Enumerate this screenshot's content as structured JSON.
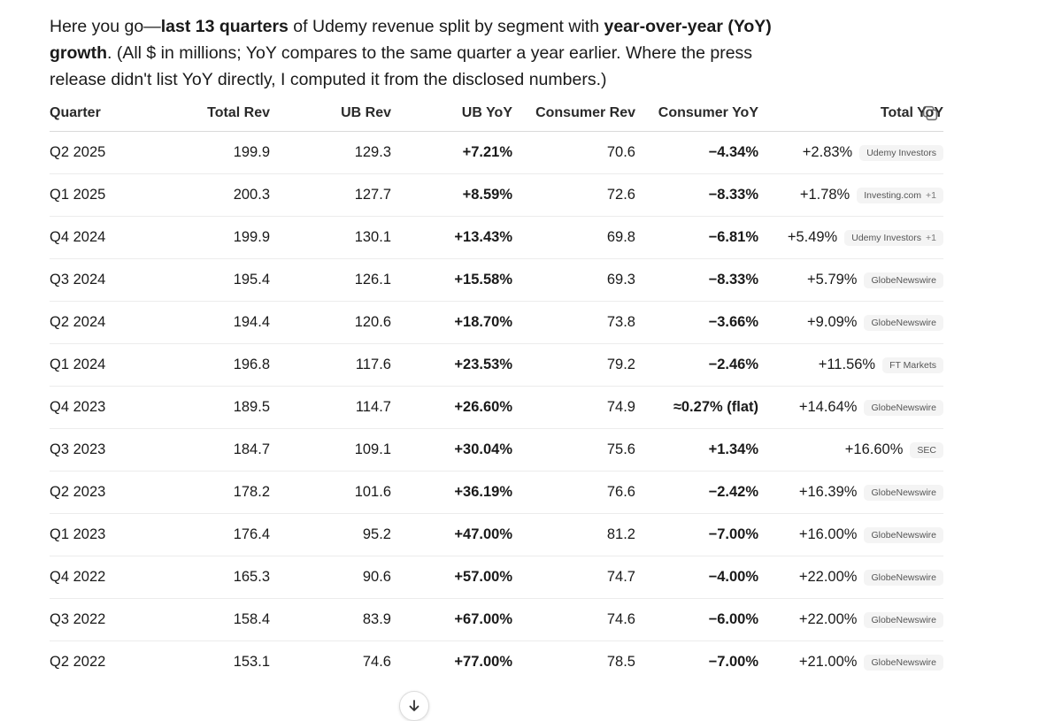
{
  "intro": {
    "p1": "Here you go—",
    "b1": "last 13 quarters",
    "p2": " of Udemy revenue split by segment with ",
    "b2": "year-over-year (YoY) growth",
    "p3": ". (All $ in millions; YoY compares to the same quarter a year earlier. Where the press release didn't list YoY directly, I computed it from the disclosed numbers.)"
  },
  "table": {
    "headers": {
      "quarter": "Quarter",
      "total_rev": "Total Rev",
      "ub_rev": "UB Rev",
      "ub_yoy": "UB YoY",
      "consumer_rev": "Consumer Rev",
      "consumer_yoy": "Consumer YoY",
      "total_yoy": "Total YoY"
    },
    "rows": [
      {
        "quarter": "Q2 2025",
        "total_rev": "199.9",
        "ub_rev": "129.3",
        "ub_yoy": "+7.21%",
        "consumer_rev": "70.6",
        "consumer_yoy": "−4.34%",
        "total_yoy": "+2.83%",
        "source": "Udemy Investors",
        "extra": ""
      },
      {
        "quarter": "Q1 2025",
        "total_rev": "200.3",
        "ub_rev": "127.7",
        "ub_yoy": "+8.59%",
        "consumer_rev": "72.6",
        "consumer_yoy": "−8.33%",
        "total_yoy": "+1.78%",
        "source": "Investing.com",
        "extra": "+1"
      },
      {
        "quarter": "Q4 2024",
        "total_rev": "199.9",
        "ub_rev": "130.1",
        "ub_yoy": "+13.43%",
        "consumer_rev": "69.8",
        "consumer_yoy": "−6.81%",
        "total_yoy": "+5.49%",
        "source": "Udemy Investors",
        "extra": "+1"
      },
      {
        "quarter": "Q3 2024",
        "total_rev": "195.4",
        "ub_rev": "126.1",
        "ub_yoy": "+15.58%",
        "consumer_rev": "69.3",
        "consumer_yoy": "−8.33%",
        "total_yoy": "+5.79%",
        "source": "GlobeNewswire",
        "extra": ""
      },
      {
        "quarter": "Q2 2024",
        "total_rev": "194.4",
        "ub_rev": "120.6",
        "ub_yoy": "+18.70%",
        "consumer_rev": "73.8",
        "consumer_yoy": "−3.66%",
        "total_yoy": "+9.09%",
        "source": "GlobeNewswire",
        "extra": ""
      },
      {
        "quarter": "Q1 2024",
        "total_rev": "196.8",
        "ub_rev": "117.6",
        "ub_yoy": "+23.53%",
        "consumer_rev": "79.2",
        "consumer_yoy": "−2.46%",
        "total_yoy": "+11.56%",
        "source": "FT Markets",
        "extra": ""
      },
      {
        "quarter": "Q4 2023",
        "total_rev": "189.5",
        "ub_rev": "114.7",
        "ub_yoy": "+26.60%",
        "consumer_rev": "74.9",
        "consumer_yoy": "≈0.27% (flat)",
        "total_yoy": "+14.64%",
        "source": "GlobeNewswire",
        "extra": ""
      },
      {
        "quarter": "Q3 2023",
        "total_rev": "184.7",
        "ub_rev": "109.1",
        "ub_yoy": "+30.04%",
        "consumer_rev": "75.6",
        "consumer_yoy": "+1.34%",
        "total_yoy": "+16.60%",
        "source": "SEC",
        "extra": ""
      },
      {
        "quarter": "Q2 2023",
        "total_rev": "178.2",
        "ub_rev": "101.6",
        "ub_yoy": "+36.19%",
        "consumer_rev": "76.6",
        "consumer_yoy": "−2.42%",
        "total_yoy": "+16.39%",
        "source": "GlobeNewswire",
        "extra": ""
      },
      {
        "quarter": "Q1 2023",
        "total_rev": "176.4",
        "ub_rev": "95.2",
        "ub_yoy": "+47.00%",
        "consumer_rev": "81.2",
        "consumer_yoy": "−7.00%",
        "total_yoy": "+16.00%",
        "source": "GlobeNewswire",
        "extra": ""
      },
      {
        "quarter": "Q4 2022",
        "total_rev": "165.3",
        "ub_rev": "90.6",
        "ub_yoy": "+57.00%",
        "consumer_rev": "74.7",
        "consumer_yoy": "−4.00%",
        "total_yoy": "+22.00%",
        "source": "GlobeNewswire",
        "extra": ""
      },
      {
        "quarter": "Q3 2022",
        "total_rev": "158.4",
        "ub_rev": "83.9",
        "ub_yoy": "+67.00%",
        "consumer_rev": "74.6",
        "consumer_yoy": "−6.00%",
        "total_yoy": "+22.00%",
        "source": "GlobeNewswire",
        "extra": ""
      },
      {
        "quarter": "Q2 2022",
        "total_rev": "153.1",
        "ub_rev": "74.6",
        "ub_yoy": "+77.00%",
        "consumer_rev": "78.5",
        "consumer_yoy": "−7.00%",
        "total_yoy": "+21.00%",
        "source": "GlobeNewswire",
        "extra": ""
      }
    ]
  },
  "icons": {
    "copy": "copy-icon",
    "scroll_down": "arrow-down-icon"
  },
  "colors": {
    "text": "#1a1a1a",
    "chip_bg": "#f4f4f4",
    "chip_text": "#555555"
  }
}
